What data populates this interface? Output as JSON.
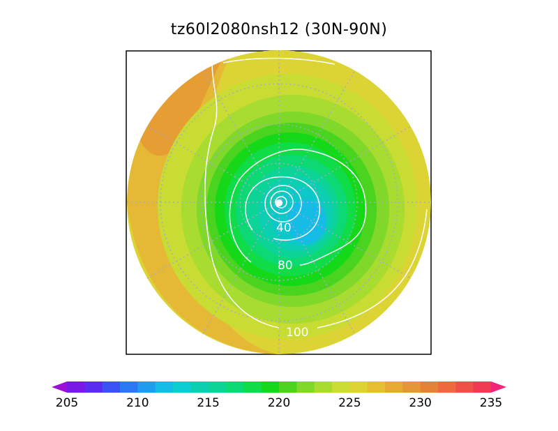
{
  "title": "tz60l2080nsh12 (30N-90N)",
  "map": {
    "projection": "north-polar-stereographic",
    "latitude_range": [
      "30N",
      "90N"
    ],
    "field_palette": [
      "#9b10d6",
      "#7a18e6",
      "#5a2cf0",
      "#3a52f2",
      "#2a78f2",
      "#1e9cf0",
      "#14bce6",
      "#0ccdd0",
      "#0ccfb2",
      "#0cd496",
      "#0cd874",
      "#10dc48",
      "#14d818",
      "#4ad420",
      "#80d82a",
      "#a8dc30",
      "#c8dc34",
      "#dcd234",
      "#e6be34",
      "#e6aa34",
      "#e69634",
      "#e68234",
      "#ec6a3c",
      "#ee5246",
      "#f03a54",
      "#f02478"
    ],
    "contour_labels": [
      {
        "text": "40",
        "value": 40
      },
      {
        "text": "80",
        "value": 80
      },
      {
        "text": "100",
        "value": 100
      }
    ],
    "contour_color": "#ffffff",
    "grid_color": "#a8a8c8"
  },
  "colorbar": {
    "min": 205,
    "max": 235,
    "step": 1.25,
    "labels": [
      "205",
      "210",
      "215",
      "220",
      "225",
      "230",
      "235"
    ],
    "extend": "both"
  }
}
